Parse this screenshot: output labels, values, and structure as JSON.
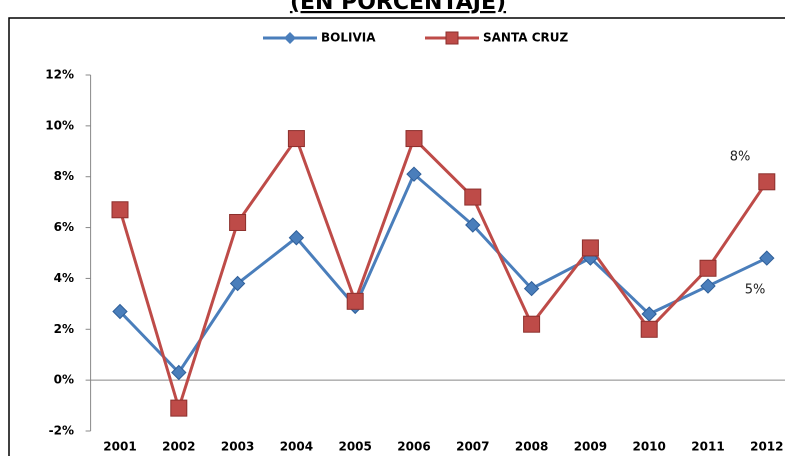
{
  "chart_data": {
    "type": "line",
    "title": "(EN PORCENTAJE)",
    "categories": [
      "2001",
      "2002",
      "2003",
      "2004",
      "2005",
      "2006",
      "2007",
      "2008",
      "2009",
      "2010",
      "2011",
      "2012"
    ],
    "series": [
      {
        "name": "BOLIVIA",
        "color": "#4a7ebb",
        "marker": "diamond",
        "values": [
          2.7,
          0.3,
          3.8,
          5.6,
          2.9,
          8.1,
          6.1,
          3.6,
          4.8,
          2.6,
          3.7,
          4.8
        ]
      },
      {
        "name": "SANTA CRUZ",
        "color": "#be4b48",
        "marker": "square",
        "values": [
          6.7,
          -1.1,
          6.2,
          9.5,
          3.1,
          9.5,
          7.2,
          2.2,
          5.2,
          2.0,
          4.4,
          7.8
        ]
      }
    ],
    "ylim": [
      -2,
      12
    ],
    "yticks": [
      {
        "value": -2,
        "label": "-2%"
      },
      {
        "value": 0,
        "label": "0%"
      },
      {
        "value": 2,
        "label": "2%"
      },
      {
        "value": 4,
        "label": "4%"
      },
      {
        "value": 6,
        "label": "6%"
      },
      {
        "value": 8,
        "label": "8%"
      },
      {
        "value": 10,
        "label": "10%"
      },
      {
        "value": 12,
        "label": "12%"
      }
    ],
    "annotations": [
      {
        "text": "8%"
      },
      {
        "text": "5%"
      }
    ],
    "legend": "top",
    "grid": false
  }
}
